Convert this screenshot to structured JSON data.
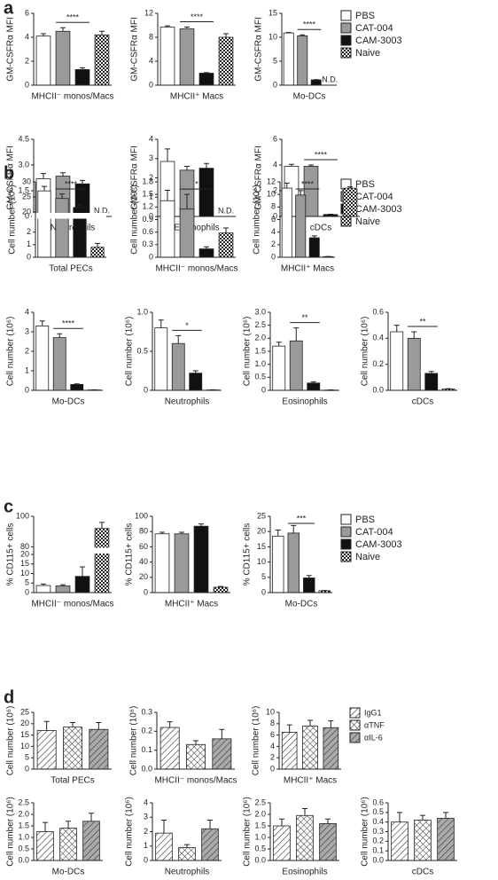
{
  "panels": [
    {
      "label": "a",
      "legend": [
        {
          "name": "PBS",
          "fill": "#ffffff"
        },
        {
          "name": "CAT-004",
          "fill": "#9a9a9a"
        },
        {
          "name": "CAM-3003",
          "fill": "#111111"
        },
        {
          "name": "Naive",
          "fill": "check"
        }
      ]
    },
    {
      "label": "b",
      "legend": [
        {
          "name": "PBS",
          "fill": "#ffffff"
        },
        {
          "name": "CAT-004",
          "fill": "#9a9a9a"
        },
        {
          "name": "CAM-3003",
          "fill": "#111111"
        },
        {
          "name": "Naive",
          "fill": "check"
        }
      ]
    },
    {
      "label": "c",
      "legend": [
        {
          "name": "PBS",
          "fill": "#ffffff"
        },
        {
          "name": "CAT-004",
          "fill": "#9a9a9a"
        },
        {
          "name": "CAM-3003",
          "fill": "#111111"
        },
        {
          "name": "Naive",
          "fill": "check"
        }
      ]
    },
    {
      "label": "d",
      "legend": [
        {
          "name": "IgG1",
          "fill": "hatch"
        },
        {
          "name": "αTNF",
          "fill": "cross"
        },
        {
          "name": "αIL-6",
          "fill": "grayhatch"
        }
      ]
    }
  ],
  "chart_data": [
    {
      "type": "bar",
      "ylabel": "GM-CSFRα MFI",
      "xlabel": "MHCII⁻ monos/Macs",
      "values": [
        4.1,
        4.5,
        1.3,
        4.2
      ],
      "errors": [
        0.2,
        0.3,
        0.15,
        0.3
      ],
      "ylim": [
        0,
        6
      ],
      "yticks": [
        0,
        2,
        4,
        6
      ],
      "annotation": "****"
    },
    {
      "type": "bar",
      "ylabel": "GM-CSFRα MFI",
      "xlabel": "MHCII⁺ Macs",
      "values": [
        9.7,
        9.4,
        2.0,
        8.0
      ],
      "errors": [
        0.2,
        0.3,
        0.1,
        0.6
      ],
      "ylim": [
        0,
        12
      ],
      "yticks": [
        0,
        4,
        8,
        12
      ],
      "annotation": "****"
    },
    {
      "type": "bar",
      "ylabel": "GM-CSFRα MFI",
      "xlabel": "Mo-DCs",
      "values": [
        10.9,
        10.3,
        1.1,
        null
      ],
      "errors": [
        0.1,
        0.2,
        0.05,
        null
      ],
      "value_labels": [
        null,
        null,
        null,
        "N.D."
      ],
      "ylim": [
        0,
        15
      ],
      "yticks": [
        0,
        5,
        10,
        15
      ],
      "annotation": "****"
    },
    {
      "type": "bar",
      "ylabel": "GM-CSFRα MFI",
      "xlabel": "Neutrophils",
      "values": [
        2.2,
        2.35,
        1.9,
        null
      ],
      "errors": [
        0.3,
        0.2,
        0.2,
        null
      ],
      "value_labels": [
        null,
        null,
        null,
        "N.D."
      ],
      "ylim": [
        0,
        4.5
      ],
      "yticks": [
        0,
        1.5,
        {
          "value": 3,
          "label": "3.0"
        },
        4.5
      ]
    },
    {
      "type": "bar",
      "ylabel": "GM-CSFRα MFI",
      "xlabel": "Eosinophils",
      "values": [
        2.85,
        2.4,
        2.5,
        null
      ],
      "errors": [
        0.65,
        0.2,
        0.25,
        null
      ],
      "value_labels": [
        null,
        null,
        null,
        "N.D."
      ],
      "ylim": [
        0,
        4
      ],
      "yticks": [
        0,
        1,
        2,
        3,
        4
      ]
    },
    {
      "type": "bar",
      "ylabel": "GM-CSFRα MFI",
      "xlabel": "cDCs",
      "values": [
        3.9,
        3.9,
        0.15,
        2.2
      ],
      "errors": [
        0.15,
        0.1,
        0.02,
        0.1
      ],
      "ylim": [
        0,
        6
      ],
      "yticks": [
        0,
        2,
        4,
        6
      ],
      "annotation": "****"
    },
    {
      "type": "bar",
      "ylabel": "Cell number (10⁶)",
      "xlabel": "Total PECs",
      "values": [
        27,
        24.5,
        21.5,
        0.8
      ],
      "errors": [
        1.5,
        1.5,
        0.8,
        0.3
      ],
      "ylim": [
        0,
        30
      ],
      "ybreak": [
        3,
        20
      ],
      "yticks": [
        0,
        1,
        2,
        20,
        25,
        30
      ],
      "annotation": "****"
    },
    {
      "type": "bar",
      "ylabel": "Cell number (10⁶)",
      "xlabel": "MHCII⁻ monos/Macs",
      "values": [
        1.35,
        1.15,
        0.2,
        0.58
      ],
      "errors": [
        0.25,
        0.35,
        0.05,
        0.12
      ],
      "ylim": [
        0,
        1.8
      ],
      "yticks": [
        0,
        0.3,
        0.6,
        0.9,
        1.2,
        1.5,
        1.8
      ],
      "annotation": "*"
    },
    {
      "type": "bar",
      "ylabel": "Cell number (10⁶)",
      "xlabel": "MHCII⁺ Macs",
      "values": [
        11,
        9.9,
        3.1,
        0.1
      ],
      "errors": [
        0.8,
        0.7,
        0.3,
        0.02
      ],
      "ylim": [
        0,
        12
      ],
      "yticks": [
        0,
        2,
        4,
        6,
        8,
        10,
        12
      ],
      "annotation": "****"
    },
    {
      "type": "bar",
      "ylabel": "Cell number (10⁶)",
      "xlabel": "Mo-DCs",
      "values": [
        3.3,
        2.7,
        0.3,
        0.02
      ],
      "errors": [
        0.25,
        0.2,
        0.03,
        0.01
      ],
      "ylim": [
        0,
        4
      ],
      "yticks": [
        0,
        1,
        2,
        3,
        4
      ],
      "annotation": "****"
    },
    {
      "type": "bar",
      "ylabel": "Cell number (10⁶)",
      "xlabel": "Neutrophils",
      "values": [
        0.8,
        0.6,
        0.22,
        0.005
      ],
      "errors": [
        0.1,
        0.1,
        0.03,
        0.002
      ],
      "ylim": [
        0,
        1
      ],
      "yticks": [
        0,
        0.5,
        {
          "value": 1,
          "label": "1.0"
        }
      ],
      "annotation": "*"
    },
    {
      "type": "bar",
      "ylabel": "Cell number (10⁶)",
      "xlabel": "Eosinophils",
      "values": [
        1.7,
        1.9,
        0.28,
        0.01
      ],
      "errors": [
        0.15,
        0.5,
        0.05,
        0.005
      ],
      "ylim": [
        0,
        3
      ],
      "yticks": [
        0,
        0.5,
        {
          "value": 1,
          "label": "1.0"
        },
        1.5,
        {
          "value": 2,
          "label": "2.0"
        },
        2.5,
        {
          "value": 3,
          "label": "3.0"
        }
      ],
      "annotation": "**"
    },
    {
      "type": "bar",
      "ylabel": "Cell number (10⁶)",
      "xlabel": "cDCs",
      "values": [
        0.45,
        0.4,
        0.13,
        0.01
      ],
      "errors": [
        0.05,
        0.05,
        0.015,
        0.003
      ],
      "ylim": [
        0,
        0.6
      ],
      "yticks": [
        {
          "value": 0,
          "label": "0.0"
        },
        0.2,
        0.4,
        0.6
      ],
      "annotation": "**"
    },
    {
      "type": "bar",
      "ylabel": "% CD115+ cells",
      "xlabel": "MHCII⁻ monos/Macs",
      "values": [
        3.7,
        3.5,
        8.5,
        92
      ],
      "errors": [
        0.8,
        0.6,
        5,
        4
      ],
      "ylim": [
        0,
        100
      ],
      "ybreak": [
        20,
        80
      ],
      "yticks": [
        0,
        5,
        10,
        15,
        20,
        80,
        100
      ]
    },
    {
      "type": "bar",
      "ylabel": "% CD115+ cells",
      "xlabel": "MHCII⁺ Macs",
      "values": [
        77,
        77,
        87,
        7
      ],
      "errors": [
        2,
        2,
        3,
        1
      ],
      "ylim": [
        0,
        100
      ],
      "yticks": [
        0,
        20,
        40,
        60,
        80,
        100
      ]
    },
    {
      "type": "bar",
      "ylabel": "% CD115+ cells",
      "xlabel": "Mo-DCs",
      "values": [
        18.5,
        19.5,
        4.8,
        0.6
      ],
      "errors": [
        2,
        2.5,
        0.8,
        0.1
      ],
      "ylim": [
        0,
        25
      ],
      "yticks": [
        0,
        5,
        10,
        15,
        20,
        25
      ],
      "annotation": "***"
    },
    {
      "type": "bar",
      "ylabel": "Cell number (10⁶)",
      "xlabel": "Total PECs",
      "values": [
        17,
        18.5,
        17.5
      ],
      "errors": [
        4,
        2,
        3
      ],
      "ylim": [
        0,
        25
      ],
      "yticks": [
        0,
        5,
        10,
        15,
        20,
        25
      ]
    },
    {
      "type": "bar",
      "ylabel": "Cell number (10⁶)",
      "xlabel": "MHCII⁻ monos/Macs",
      "values": [
        0.22,
        0.13,
        0.16
      ],
      "errors": [
        0.03,
        0.02,
        0.05
      ],
      "ylim": [
        0,
        0.3
      ],
      "yticks": [
        {
          "value": 0,
          "label": "0.0"
        },
        0.1,
        0.2,
        0.3
      ]
    },
    {
      "type": "bar",
      "ylabel": "Cell number (10⁶)",
      "xlabel": "MHCII⁺ Macs",
      "values": [
        6.5,
        7.6,
        7.3
      ],
      "errors": [
        1.3,
        1,
        1.2
      ],
      "ylim": [
        0,
        10
      ],
      "yticks": [
        0,
        2,
        4,
        6,
        8,
        10
      ]
    },
    {
      "type": "bar",
      "ylabel": "Cell number (10⁶)",
      "xlabel": "Mo-DCs",
      "values": [
        1.25,
        1.4,
        1.7
      ],
      "errors": [
        0.4,
        0.3,
        0.35
      ],
      "ylim": [
        0,
        2.5
      ],
      "yticks": [
        {
          "value": 0,
          "label": "0.0"
        },
        0.5,
        {
          "value": 1,
          "label": "1.0"
        },
        1.5,
        {
          "value": 2,
          "label": "2.0"
        },
        2.5
      ]
    },
    {
      "type": "bar",
      "ylabel": "Cell number (10⁶)",
      "xlabel": "Neutrophils",
      "values": [
        1.9,
        0.9,
        2.2
      ],
      "errors": [
        0.9,
        0.2,
        0.6
      ],
      "ylim": [
        0,
        4
      ],
      "yticks": [
        0,
        1,
        2,
        3,
        4
      ]
    },
    {
      "type": "bar",
      "ylabel": "Cell number (10⁶)",
      "xlabel": "Eosinophils",
      "values": [
        1.5,
        1.95,
        1.6
      ],
      "errors": [
        0.3,
        0.3,
        0.2
      ],
      "ylim": [
        0,
        2.5
      ],
      "yticks": [
        {
          "value": 0,
          "label": "0.0"
        },
        0.5,
        {
          "value": 1,
          "label": "1.0"
        },
        1.5,
        {
          "value": 2,
          "label": "2.0"
        },
        2.5
      ]
    },
    {
      "type": "bar",
      "ylabel": "Cell number (10⁶)",
      "xlabel": "cDCs",
      "values": [
        0.4,
        0.42,
        0.44
      ],
      "errors": [
        0.1,
        0.05,
        0.06
      ],
      "ylim": [
        0,
        0.6
      ],
      "yticks": [
        {
          "value": 0,
          "label": "0.0"
        },
        0.1,
        0.2,
        0.3,
        0.4,
        0.5,
        0.6
      ]
    }
  ]
}
